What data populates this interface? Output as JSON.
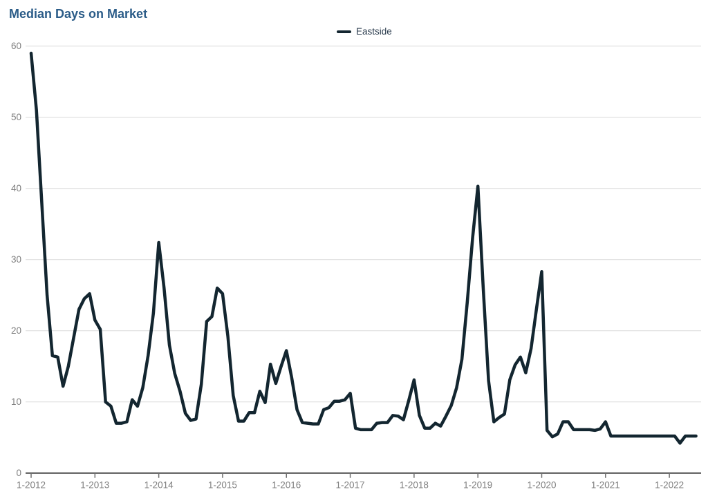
{
  "title": "Median Days on Market",
  "legend": {
    "series_label": "Eastside"
  },
  "colors": {
    "title": "#2b5c88",
    "legend_text": "#2b3c4e",
    "line": "#132630",
    "axis_text": "#7f7f7f",
    "gridline": "#d9d9d9",
    "axis_line": "#6e6e6e"
  },
  "chart_data": {
    "type": "line",
    "title": "Median Days on Market",
    "legend": [
      "Eastside"
    ],
    "legend_position": "top-center",
    "xlabel": "",
    "ylabel": "",
    "grid": "horizontal",
    "ylim": [
      0,
      60
    ],
    "y_ticks": [
      0,
      10,
      20,
      30,
      40,
      50,
      60
    ],
    "x_tick_labels": [
      "1-2012",
      "1-2013",
      "1-2014",
      "1-2015",
      "1-2016",
      "1-2017",
      "1-2018",
      "1-2019",
      "1-2020",
      "1-2021",
      "1-2022"
    ],
    "x_start_month": "2012-01",
    "x_frequency": "monthly",
    "series": [
      {
        "name": "Eastside",
        "values": [
          59,
          51,
          38,
          25,
          16.5,
          16.3,
          12.2,
          15,
          19,
          23,
          24.5,
          25.2,
          21.5,
          20.2,
          10,
          9.4,
          7,
          7,
          7.2,
          10.3,
          9.4,
          12,
          16.5,
          22.5,
          32.4,
          26,
          18,
          14,
          11.5,
          8.4,
          7.4,
          7.6,
          12.5,
          21.3,
          22,
          26,
          25.2,
          19.2,
          10.9,
          7.3,
          7.3,
          8.5,
          8.5,
          11.5,
          9.9,
          15.3,
          12.6,
          15,
          17.2,
          13.4,
          8.9,
          7.1,
          7,
          6.9,
          6.9,
          8.9,
          9.2,
          10.1,
          10.1,
          10.3,
          11.2,
          6.3,
          6.1,
          6.1,
          6.1,
          7,
          7.1,
          7.1,
          8.1,
          8,
          7.5,
          10.2,
          13.1,
          8.1,
          6.3,
          6.3,
          7,
          6.6,
          8,
          9.5,
          12,
          16,
          24,
          33,
          40.3,
          26,
          13,
          7.2,
          7.8,
          8.3,
          13.1,
          15.2,
          16.3,
          14.1,
          17.5,
          23,
          28.3,
          6,
          5.1,
          5.5,
          7.2,
          7.2,
          6.1,
          6.1,
          6.1,
          6.1,
          6,
          6.2,
          7.2,
          5.2,
          5.2,
          5.2,
          5.2,
          5.2,
          5.2,
          5.2,
          5.2,
          5.2,
          5.2,
          5.2,
          5.2,
          5.2,
          4.2,
          5.2,
          5.2,
          5.2
        ]
      }
    ]
  }
}
